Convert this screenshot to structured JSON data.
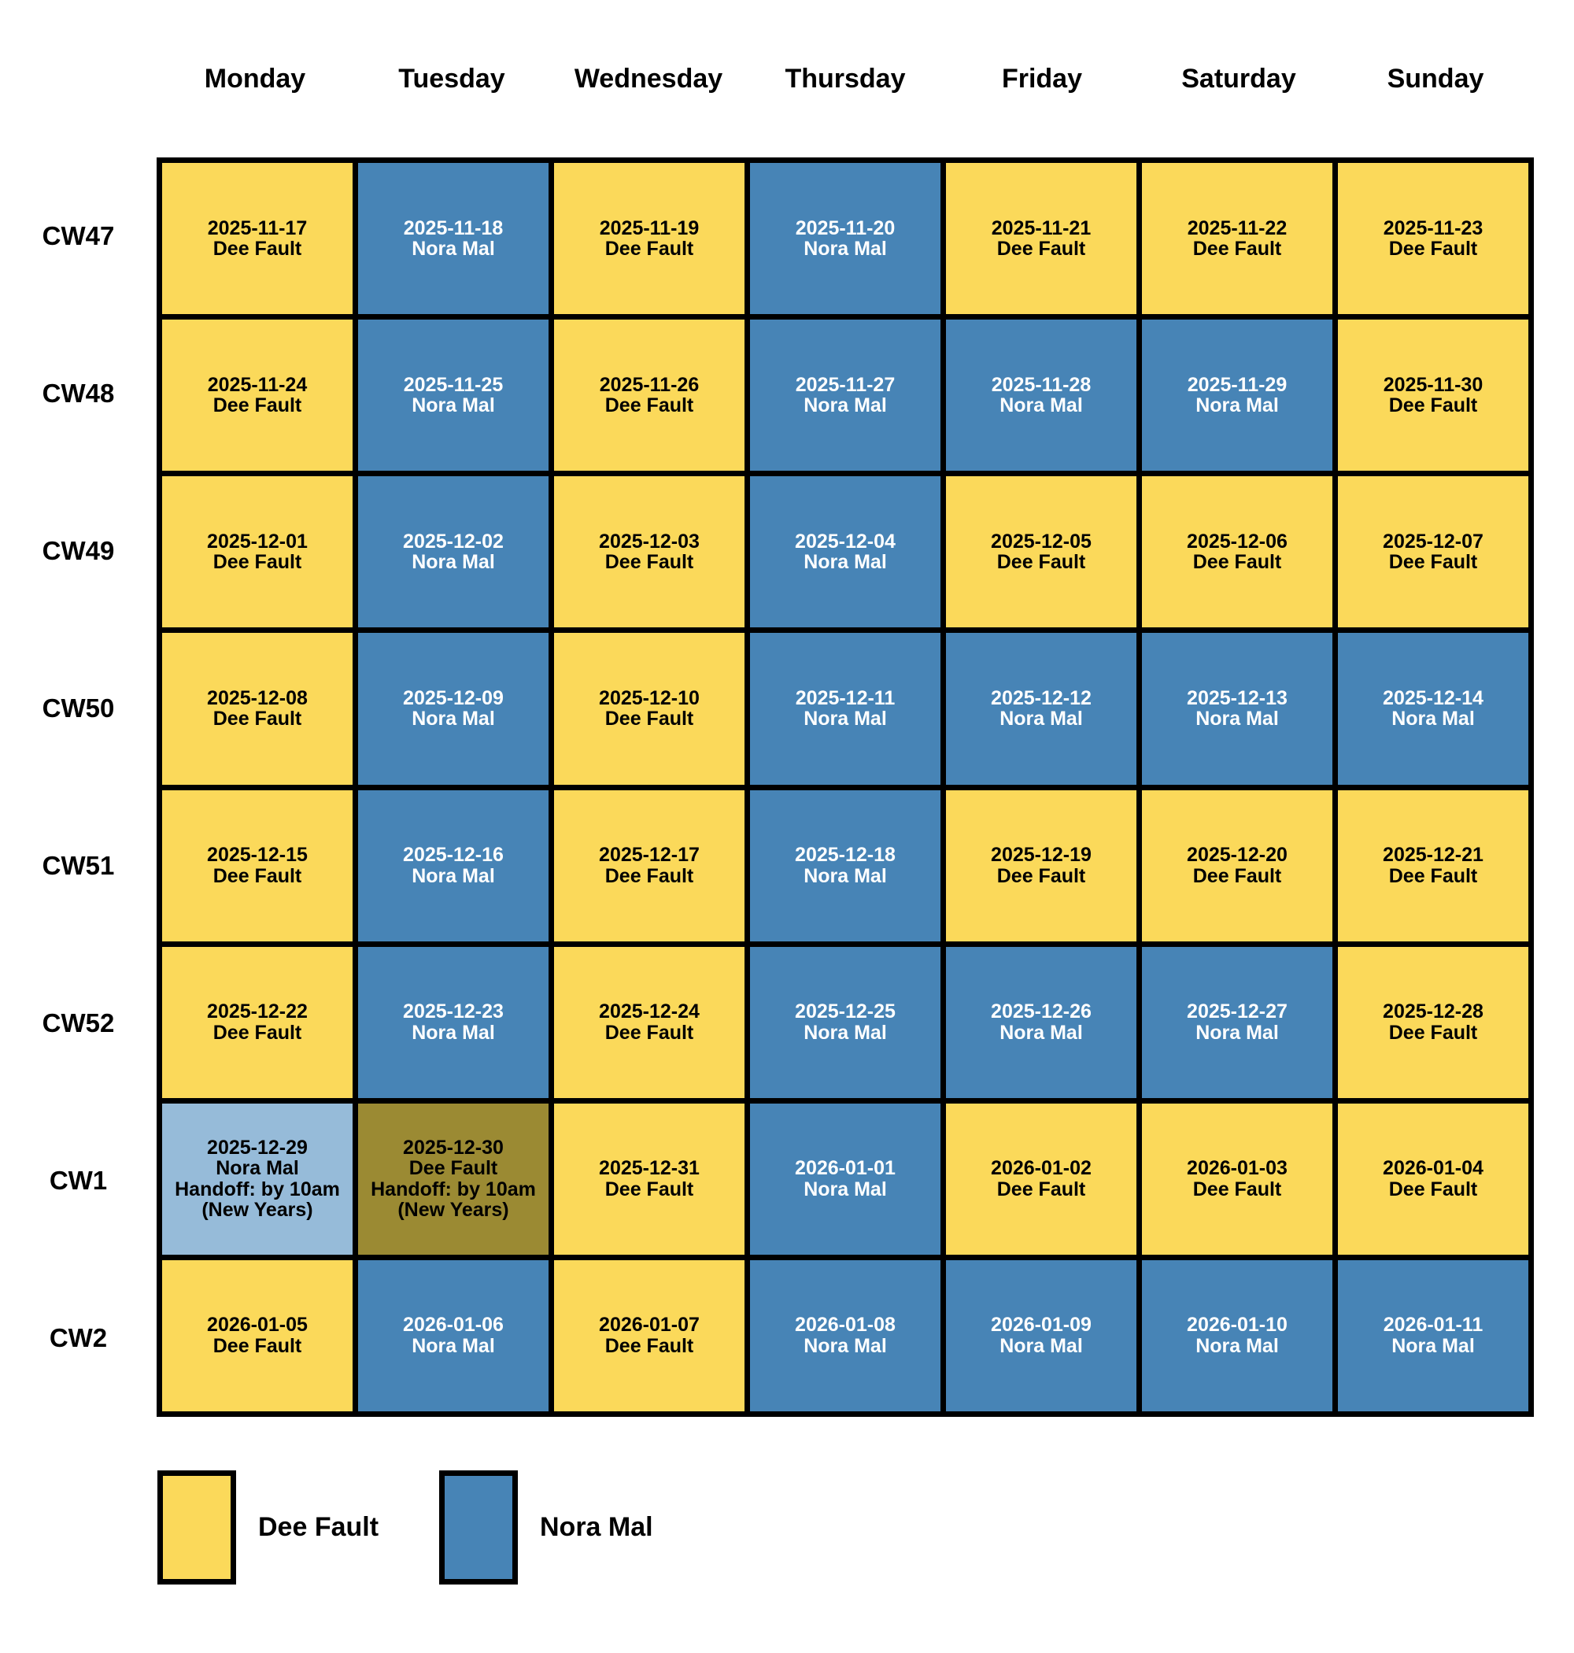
{
  "chart_data": {
    "type": "table",
    "title": "",
    "columns": [
      "Monday",
      "Tuesday",
      "Wednesday",
      "Thursday",
      "Friday",
      "Saturday",
      "Sunday"
    ],
    "rows": [
      {
        "label": "CW47",
        "cells": [
          {
            "date": "2025-11-17",
            "assignee": "Dee Fault",
            "variant": "dee"
          },
          {
            "date": "2025-11-18",
            "assignee": "Nora Mal",
            "variant": "nora"
          },
          {
            "date": "2025-11-19",
            "assignee": "Dee Fault",
            "variant": "dee"
          },
          {
            "date": "2025-11-20",
            "assignee": "Nora Mal",
            "variant": "nora"
          },
          {
            "date": "2025-11-21",
            "assignee": "Dee Fault",
            "variant": "dee"
          },
          {
            "date": "2025-11-22",
            "assignee": "Dee Fault",
            "variant": "dee"
          },
          {
            "date": "2025-11-23",
            "assignee": "Dee Fault",
            "variant": "dee"
          }
        ]
      },
      {
        "label": "CW48",
        "cells": [
          {
            "date": "2025-11-24",
            "assignee": "Dee Fault",
            "variant": "dee"
          },
          {
            "date": "2025-11-25",
            "assignee": "Nora Mal",
            "variant": "nora"
          },
          {
            "date": "2025-11-26",
            "assignee": "Dee Fault",
            "variant": "dee"
          },
          {
            "date": "2025-11-27",
            "assignee": "Nora Mal",
            "variant": "nora"
          },
          {
            "date": "2025-11-28",
            "assignee": "Nora Mal",
            "variant": "nora"
          },
          {
            "date": "2025-11-29",
            "assignee": "Nora Mal",
            "variant": "nora"
          },
          {
            "date": "2025-11-30",
            "assignee": "Dee Fault",
            "variant": "dee"
          }
        ]
      },
      {
        "label": "CW49",
        "cells": [
          {
            "date": "2025-12-01",
            "assignee": "Dee Fault",
            "variant": "dee"
          },
          {
            "date": "2025-12-02",
            "assignee": "Nora Mal",
            "variant": "nora"
          },
          {
            "date": "2025-12-03",
            "assignee": "Dee Fault",
            "variant": "dee"
          },
          {
            "date": "2025-12-04",
            "assignee": "Nora Mal",
            "variant": "nora"
          },
          {
            "date": "2025-12-05",
            "assignee": "Dee Fault",
            "variant": "dee"
          },
          {
            "date": "2025-12-06",
            "assignee": "Dee Fault",
            "variant": "dee"
          },
          {
            "date": "2025-12-07",
            "assignee": "Dee Fault",
            "variant": "dee"
          }
        ]
      },
      {
        "label": "CW50",
        "cells": [
          {
            "date": "2025-12-08",
            "assignee": "Dee Fault",
            "variant": "dee"
          },
          {
            "date": "2025-12-09",
            "assignee": "Nora Mal",
            "variant": "nora"
          },
          {
            "date": "2025-12-10",
            "assignee": "Dee Fault",
            "variant": "dee"
          },
          {
            "date": "2025-12-11",
            "assignee": "Nora Mal",
            "variant": "nora"
          },
          {
            "date": "2025-12-12",
            "assignee": "Nora Mal",
            "variant": "nora"
          },
          {
            "date": "2025-12-13",
            "assignee": "Nora Mal",
            "variant": "nora"
          },
          {
            "date": "2025-12-14",
            "assignee": "Nora Mal",
            "variant": "nora"
          }
        ]
      },
      {
        "label": "CW51",
        "cells": [
          {
            "date": "2025-12-15",
            "assignee": "Dee Fault",
            "variant": "dee"
          },
          {
            "date": "2025-12-16",
            "assignee": "Nora Mal",
            "variant": "nora"
          },
          {
            "date": "2025-12-17",
            "assignee": "Dee Fault",
            "variant": "dee"
          },
          {
            "date": "2025-12-18",
            "assignee": "Nora Mal",
            "variant": "nora"
          },
          {
            "date": "2025-12-19",
            "assignee": "Dee Fault",
            "variant": "dee"
          },
          {
            "date": "2025-12-20",
            "assignee": "Dee Fault",
            "variant": "dee"
          },
          {
            "date": "2025-12-21",
            "assignee": "Dee Fault",
            "variant": "dee"
          }
        ]
      },
      {
        "label": "CW52",
        "cells": [
          {
            "date": "2025-12-22",
            "assignee": "Dee Fault",
            "variant": "dee"
          },
          {
            "date": "2025-12-23",
            "assignee": "Nora Mal",
            "variant": "nora"
          },
          {
            "date": "2025-12-24",
            "assignee": "Dee Fault",
            "variant": "dee"
          },
          {
            "date": "2025-12-25",
            "assignee": "Nora Mal",
            "variant": "nora"
          },
          {
            "date": "2025-12-26",
            "assignee": "Nora Mal",
            "variant": "nora"
          },
          {
            "date": "2025-12-27",
            "assignee": "Nora Mal",
            "variant": "nora"
          },
          {
            "date": "2025-12-28",
            "assignee": "Dee Fault",
            "variant": "dee"
          }
        ]
      },
      {
        "label": "CW1",
        "cells": [
          {
            "date": "2025-12-29",
            "assignee": "Nora Mal",
            "variant": "nora-handoff",
            "notes": [
              "Handoff: by 10am",
              "(New Years)"
            ]
          },
          {
            "date": "2025-12-30",
            "assignee": "Dee Fault",
            "variant": "dee-handoff",
            "notes": [
              "Handoff: by 10am",
              "(New Years)"
            ]
          },
          {
            "date": "2025-12-31",
            "assignee": "Dee Fault",
            "variant": "dee"
          },
          {
            "date": "2026-01-01",
            "assignee": "Nora Mal",
            "variant": "nora"
          },
          {
            "date": "2026-01-02",
            "assignee": "Dee Fault",
            "variant": "dee"
          },
          {
            "date": "2026-01-03",
            "assignee": "Dee Fault",
            "variant": "dee"
          },
          {
            "date": "2026-01-04",
            "assignee": "Dee Fault",
            "variant": "dee"
          }
        ]
      },
      {
        "label": "CW2",
        "cells": [
          {
            "date": "2026-01-05",
            "assignee": "Dee Fault",
            "variant": "dee"
          },
          {
            "date": "2026-01-06",
            "assignee": "Nora Mal",
            "variant": "nora"
          },
          {
            "date": "2026-01-07",
            "assignee": "Dee Fault",
            "variant": "dee"
          },
          {
            "date": "2026-01-08",
            "assignee": "Nora Mal",
            "variant": "nora"
          },
          {
            "date": "2026-01-09",
            "assignee": "Nora Mal",
            "variant": "nora"
          },
          {
            "date": "2026-01-10",
            "assignee": "Nora Mal",
            "variant": "nora"
          },
          {
            "date": "2026-01-11",
            "assignee": "Nora Mal",
            "variant": "nora"
          }
        ]
      }
    ],
    "legend": [
      {
        "label": "Dee Fault",
        "variant": "dee"
      },
      {
        "label": "Nora Mal",
        "variant": "nora"
      }
    ],
    "colors": {
      "dee": "#FBD95A",
      "nora": "#4784B6",
      "dee-handoff": "#9B8A33",
      "nora-handoff": "#96BBD9",
      "border": "#000000",
      "text-dark": "#000000",
      "text-light": "#FFFFFF"
    },
    "layout": {
      "grid_on": true,
      "legend_position": "bottom-left"
    }
  }
}
